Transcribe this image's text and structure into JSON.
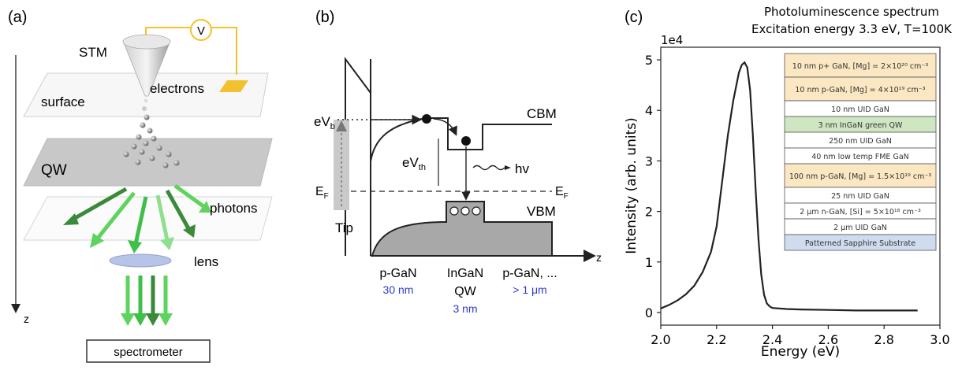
{
  "panel_a": {
    "label": "(a)",
    "stm": "STM",
    "voltage": "V",
    "electrons": "electrons",
    "surface": "surface",
    "qw": "QW",
    "photons": "photons",
    "lens": "lens",
    "z": "z",
    "spectrometer": "spectrometer",
    "colors": {
      "dark_green": "#3a8a3a",
      "light_green": "#5ed35e",
      "mid_green": "#3fbf4a",
      "sample": "#f2c12e"
    }
  },
  "panel_b": {
    "label": "(b)",
    "evb": "eV",
    "evb_sub": "b",
    "evth": "eV",
    "evth_sub": "th",
    "ef_left": "E",
    "ef_left_sub": "F",
    "ef_right": "E",
    "ef_right_sub": "F",
    "cbm": "CBM",
    "vbm": "VBM",
    "hv": "hv",
    "tip": "Tip",
    "z": "z",
    "layers": [
      {
        "name": "p-GaN",
        "thickness": "30 nm"
      },
      {
        "name": "InGaN",
        "name2": "QW",
        "thickness": "3 nm"
      },
      {
        "name": "p-GaN, ...",
        "thickness": "> 1 μm"
      }
    ]
  },
  "panel_c": {
    "label": "(c)",
    "title_line1": "Photoluminescence spectrum",
    "title_line2": "Excitation energy 3.3 eV, T=100K",
    "multiplier": "1e4",
    "xlabel": "Energy (eV)",
    "ylabel": "Intensity (arb. units)",
    "stack": [
      {
        "text": "10 nm p+ GaN, [Mg] = 2×10²⁰ cm⁻³",
        "color": "#fbe7c2"
      },
      {
        "text": "10 nm p-GaN, [Mg] = 4×10¹⁹ cm⁻³",
        "color": "#fbe7c2"
      },
      {
        "text": "10 nm UID GaN",
        "color": "#ffffff"
      },
      {
        "text": "3 nm InGaN green QW",
        "color": "#cfe6c3"
      },
      {
        "text": "250 nm UID GaN",
        "color": "#ffffff"
      },
      {
        "text": "40 nm low temp FME GaN",
        "color": "#ffffff"
      },
      {
        "text": "100 nm p-GaN, [Mg] = 1.5×10¹⁹ cm⁻³",
        "color": "#fbe7c2"
      },
      {
        "text": "25 nm UID GaN",
        "color": "#ffffff"
      },
      {
        "text": "2 μm n-GaN, [Si] = 5×10¹⁸ cm⁻³",
        "color": "#ffffff"
      },
      {
        "text": "2 μm UID GaN",
        "color": "#ffffff"
      },
      {
        "text": "Patterned Sapphire Substrate",
        "color": "#cfdcef"
      }
    ]
  },
  "chart_data": {
    "type": "line",
    "title": "Photoluminescence spectrum",
    "subtitle": "Excitation energy 3.3 eV, T=100K",
    "xlabel": "Energy (eV)",
    "ylabel": "Intensity (arb. units)",
    "y_multiplier": "1e4",
    "xlim": [
      2.0,
      3.0
    ],
    "ylim": [
      -0.25,
      5.25
    ],
    "xticks": [
      2.0,
      2.2,
      2.4,
      2.6,
      2.8,
      3.0
    ],
    "yticks": [
      0,
      1,
      2,
      3,
      4,
      5
    ],
    "grid": false,
    "line_color": "#222222",
    "series": [
      {
        "x": [
          2.0,
          2.03,
          2.06,
          2.09,
          2.12,
          2.15,
          2.18,
          2.2,
          2.22,
          2.24,
          2.26,
          2.28,
          2.29,
          2.3,
          2.31,
          2.32,
          2.33,
          2.34,
          2.35,
          2.36,
          2.37,
          2.38,
          2.39,
          2.4,
          2.45,
          2.5,
          2.6,
          2.7,
          2.8,
          2.92
        ],
        "y": [
          0.08,
          0.15,
          0.24,
          0.36,
          0.53,
          0.8,
          1.2,
          1.7,
          2.6,
          3.5,
          4.2,
          4.75,
          4.9,
          4.95,
          4.85,
          4.4,
          3.5,
          2.4,
          1.45,
          0.75,
          0.35,
          0.18,
          0.12,
          0.09,
          0.07,
          0.06,
          0.05,
          0.04,
          0.04,
          0.04
        ]
      }
    ]
  }
}
